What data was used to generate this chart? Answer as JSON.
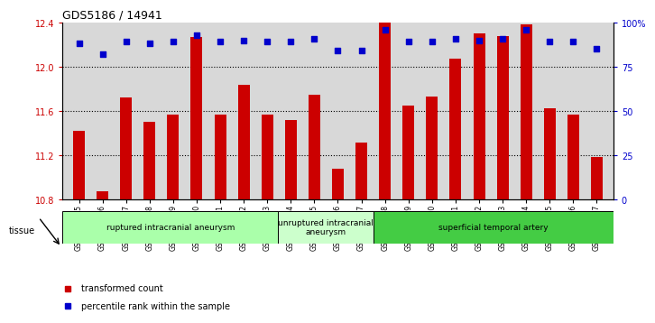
{
  "title": "GDS5186 / 14941",
  "samples": [
    "GSM1306885",
    "GSM1306886",
    "GSM1306887",
    "GSM1306888",
    "GSM1306889",
    "GSM1306890",
    "GSM1306891",
    "GSM1306892",
    "GSM1306893",
    "GSM1306894",
    "GSM1306895",
    "GSM1306896",
    "GSM1306897",
    "GSM1306898",
    "GSM1306899",
    "GSM1306900",
    "GSM1306901",
    "GSM1306902",
    "GSM1306903",
    "GSM1306904",
    "GSM1306905",
    "GSM1306906",
    "GSM1306907"
  ],
  "bar_values": [
    11.42,
    10.87,
    11.72,
    11.5,
    11.57,
    12.27,
    11.57,
    11.84,
    11.57,
    11.52,
    11.75,
    11.08,
    11.31,
    12.4,
    11.65,
    11.73,
    12.07,
    12.3,
    12.28,
    12.38,
    11.62,
    11.57,
    11.18
  ],
  "percentile_values": [
    88,
    82,
    89,
    88,
    89,
    93,
    89,
    90,
    89,
    89,
    91,
    84,
    84,
    96,
    89,
    89,
    91,
    90,
    91,
    96,
    89,
    89,
    85
  ],
  "bar_color": "#cc0000",
  "percentile_color": "#0000cc",
  "ylim_left": [
    10.8,
    12.4
  ],
  "ylim_right": [
    0,
    100
  ],
  "yticks_left": [
    10.8,
    11.2,
    11.6,
    12.0,
    12.4
  ],
  "yticks_right": [
    0,
    25,
    50,
    75,
    100
  ],
  "ytick_labels_right": [
    "0",
    "25",
    "50",
    "75",
    "100%"
  ],
  "groups": [
    {
      "label": "ruptured intracranial aneurysm",
      "start": 0,
      "end": 9,
      "color": "#aaffaa"
    },
    {
      "label": "unruptured intracranial\naneurysm",
      "start": 9,
      "end": 13,
      "color": "#ccffcc"
    },
    {
      "label": "superficial temporal artery",
      "start": 13,
      "end": 23,
      "color": "#44cc44"
    }
  ],
  "tissue_label": "tissue",
  "legend_bar_label": "transformed count",
  "legend_dot_label": "percentile rank within the sample",
  "background_color": "#d8d8d8",
  "grid_yticks": [
    11.2,
    11.6,
    12.0
  ]
}
